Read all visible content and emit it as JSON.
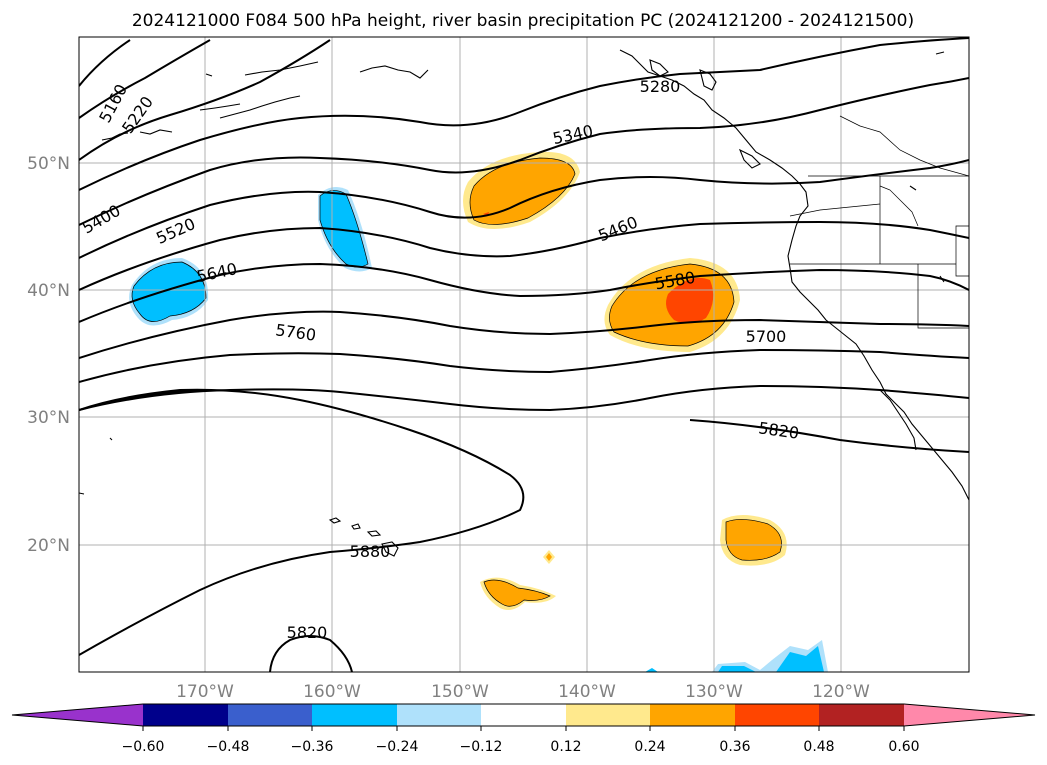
{
  "title": "2024121000 F084 500 hPa height, river basin precipitation PC (2024121200 - 2024121500)",
  "lat_labels": [
    "50°N",
    "40°N",
    "30°N",
    "20°N"
  ],
  "lon_labels": [
    "170°W",
    "160°W",
    "150°W",
    "140°W",
    "130°W",
    "120°W"
  ],
  "contour_labels": [
    "5160",
    "5220",
    "5280",
    "5340",
    "5400",
    "5460",
    "5520",
    "5580",
    "5640",
    "5700",
    "5760",
    "5820",
    "5880",
    "5820"
  ],
  "colorbar": {
    "tick_labels": [
      "−0.60",
      "−0.48",
      "−0.36",
      "−0.24",
      "−0.12",
      "0.12",
      "0.24",
      "0.36",
      "0.48",
      "0.60"
    ],
    "colors": [
      "#9932cc",
      "#00008b",
      "#3a5fcd",
      "#00bfff",
      "#afe1fb",
      "#ffffff",
      "#ffe98d",
      "#ffa500",
      "#ff4500",
      "#b22222",
      "#ff88aa"
    ]
  },
  "fill_colors": {
    "positive_low": "#ffe98d",
    "positive_mid": "#ffa500",
    "positive_high": "#ff4500",
    "negative_mid": "#00bfff",
    "negative_low": "#afe1fb"
  }
}
